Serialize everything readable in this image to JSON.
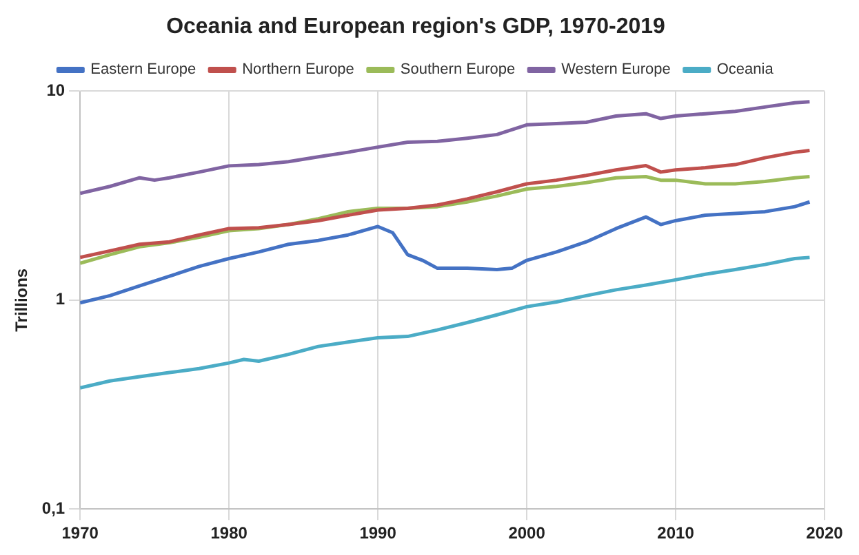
{
  "chart_data": {
    "type": "line",
    "title": "Oceania and European region's GDP, 1970-2019",
    "ylabel": "Trillions",
    "log": "y",
    "grid": true,
    "legend": "top",
    "marker": "none",
    "line_style": "solid",
    "xlim": [
      1970,
      2020
    ],
    "xticks": [
      1970,
      1980,
      1990,
      2000,
      2010,
      2020
    ],
    "ylim": [
      0.1,
      10
    ],
    "yticks": [
      {
        "value": 0.1,
        "label": "0,1"
      },
      1,
      10
    ],
    "series": [
      {
        "name": "Eastern Europe",
        "color": "#4472c4",
        "x": [
          1970,
          1972,
          1974,
          1976,
          1978,
          1980,
          1982,
          1984,
          1986,
          1988,
          1990,
          1991,
          1992,
          1993,
          1994,
          1996,
          1998,
          1999,
          2000,
          2002,
          2004,
          2006,
          2008,
          2009,
          2010,
          2012,
          2014,
          2016,
          2018,
          2019
        ],
        "values": [
          0.97,
          1.05,
          1.17,
          1.3,
          1.45,
          1.58,
          1.7,
          1.85,
          1.93,
          2.05,
          2.25,
          2.1,
          1.65,
          1.55,
          1.42,
          1.42,
          1.4,
          1.42,
          1.55,
          1.7,
          1.9,
          2.2,
          2.5,
          2.3,
          2.4,
          2.55,
          2.6,
          2.65,
          2.8,
          2.95
        ]
      },
      {
        "name": "Northern Europe",
        "color": "#c0504d",
        "x": [
          1970,
          1972,
          1974,
          1976,
          1978,
          1980,
          1982,
          1984,
          1986,
          1988,
          1990,
          1992,
          1994,
          1996,
          1998,
          2000,
          2002,
          2004,
          2006,
          2008,
          2009,
          2010,
          2012,
          2014,
          2016,
          2018,
          2019
        ],
        "values": [
          1.6,
          1.72,
          1.85,
          1.9,
          2.05,
          2.2,
          2.22,
          2.3,
          2.4,
          2.55,
          2.7,
          2.75,
          2.85,
          3.05,
          3.3,
          3.6,
          3.75,
          3.95,
          4.2,
          4.4,
          4.1,
          4.2,
          4.3,
          4.45,
          4.8,
          5.1,
          5.2
        ]
      },
      {
        "name": "Southern Europe",
        "color": "#9bbb59",
        "x": [
          1970,
          1972,
          1974,
          1976,
          1978,
          1980,
          1982,
          1984,
          1986,
          1988,
          1990,
          1992,
          1994,
          1996,
          1998,
          2000,
          2002,
          2004,
          2006,
          2008,
          2009,
          2010,
          2012,
          2014,
          2016,
          2018,
          2019
        ],
        "values": [
          1.5,
          1.65,
          1.8,
          1.88,
          2.0,
          2.15,
          2.2,
          2.3,
          2.45,
          2.65,
          2.75,
          2.75,
          2.8,
          2.95,
          3.15,
          3.4,
          3.5,
          3.65,
          3.85,
          3.9,
          3.75,
          3.75,
          3.6,
          3.6,
          3.7,
          3.85,
          3.9
        ]
      },
      {
        "name": "Western Europe",
        "color": "#8064a2",
        "x": [
          1970,
          1972,
          1974,
          1975,
          1976,
          1978,
          1980,
          1982,
          1984,
          1986,
          1988,
          1990,
          1992,
          1994,
          1996,
          1998,
          2000,
          2002,
          2004,
          2006,
          2008,
          2009,
          2010,
          2012,
          2014,
          2016,
          2018,
          2019
        ],
        "values": [
          3.24,
          3.5,
          3.85,
          3.75,
          3.85,
          4.1,
          4.39,
          4.45,
          4.6,
          4.85,
          5.1,
          5.4,
          5.7,
          5.75,
          5.95,
          6.2,
          6.9,
          7.0,
          7.1,
          7.6,
          7.8,
          7.4,
          7.6,
          7.8,
          8.0,
          8.4,
          8.8,
          8.9
        ]
      },
      {
        "name": "Oceania",
        "color": "#4bacc6",
        "x": [
          1970,
          1972,
          1974,
          1976,
          1978,
          1980,
          1981,
          1982,
          1984,
          1986,
          1988,
          1990,
          1992,
          1994,
          1996,
          1998,
          2000,
          2002,
          2004,
          2006,
          2008,
          2010,
          2012,
          2014,
          2016,
          2018,
          2019
        ],
        "values": [
          0.38,
          0.41,
          0.43,
          0.45,
          0.47,
          0.5,
          0.52,
          0.51,
          0.55,
          0.6,
          0.63,
          0.66,
          0.67,
          0.72,
          0.78,
          0.85,
          0.93,
          0.98,
          1.05,
          1.12,
          1.18,
          1.25,
          1.33,
          1.4,
          1.48,
          1.58,
          1.6
        ]
      }
    ]
  }
}
